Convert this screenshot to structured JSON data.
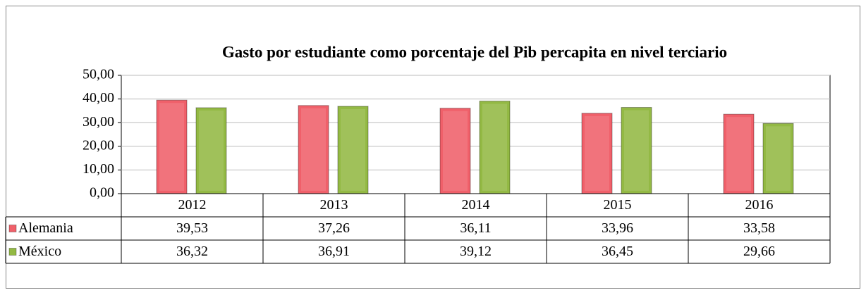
{
  "chart_data": {
    "type": "bar",
    "title": "Gasto por estudiante como porcentaje del Pib percapita en nivel terciario",
    "categories": [
      "2012",
      "2013",
      "2014",
      "2015",
      "2016"
    ],
    "series": [
      {
        "name": "Alemania",
        "color": "#f0606a",
        "values": [
          39.53,
          37.26,
          36.11,
          33.96,
          33.58
        ],
        "value_labels": [
          "39,53",
          "37,26",
          "36,11",
          "33,96",
          "33,58"
        ]
      },
      {
        "name": "México",
        "color": "#93b944",
        "values": [
          36.32,
          36.91,
          39.12,
          36.45,
          29.66
        ],
        "value_labels": [
          "36,32",
          "36,91",
          "39,12",
          "36,45",
          "29,66"
        ]
      }
    ],
    "ylim": [
      0,
      50
    ],
    "yticks": [
      {
        "value": 0,
        "label": "0,00"
      },
      {
        "value": 10,
        "label": "10,00"
      },
      {
        "value": 20,
        "label": "20,00"
      },
      {
        "value": 30,
        "label": "30,00"
      },
      {
        "value": 40,
        "label": "40,00"
      },
      {
        "value": 50,
        "label": "50,00"
      }
    ],
    "grid": true
  }
}
